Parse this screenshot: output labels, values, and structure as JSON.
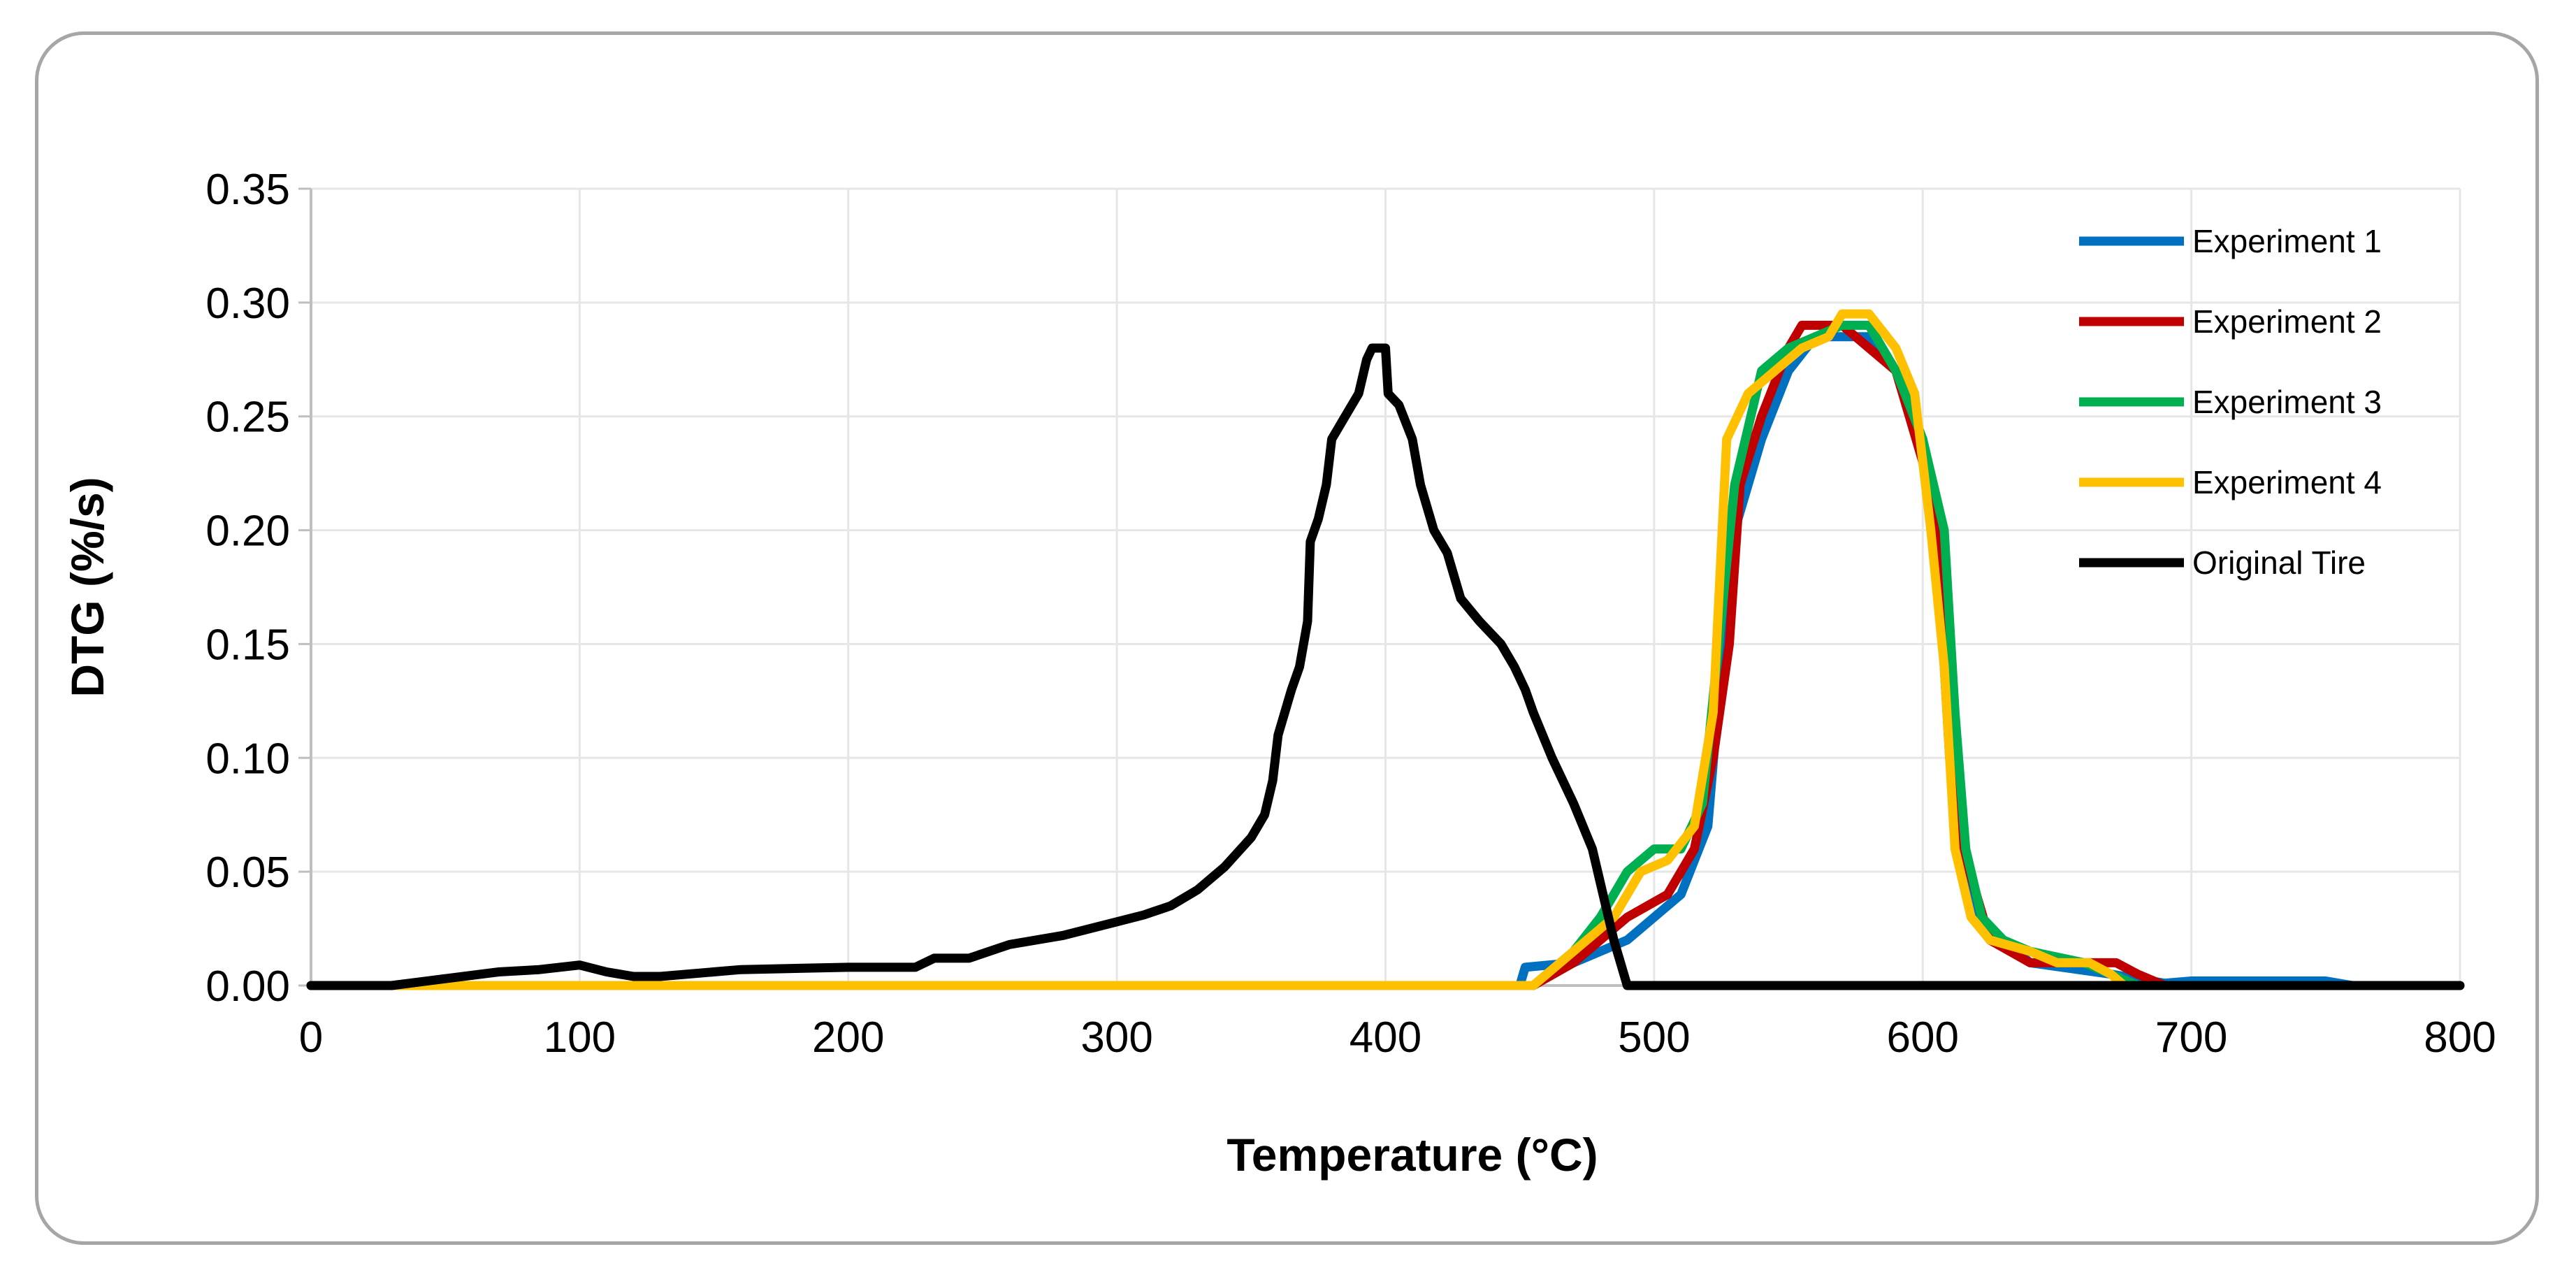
{
  "chart_data": {
    "type": "line",
    "title": "",
    "xlabel": "Temperature (°C)",
    "ylabel": "DTG (%/s)",
    "xlim": [
      0,
      800
    ],
    "ylim": [
      0,
      0.35
    ],
    "x_ticks": [
      0,
      100,
      200,
      300,
      400,
      500,
      600,
      700,
      800
    ],
    "y_ticks": [
      0,
      0.05,
      0.1,
      0.15,
      0.2,
      0.25,
      0.3,
      0.35
    ],
    "x_tick_labels": [
      "0",
      "100",
      "200",
      "300",
      "400",
      "500",
      "600",
      "700",
      "800"
    ],
    "y_tick_labels": [
      "0.00",
      "0.05",
      "0.10",
      "0.15",
      "0.20",
      "0.25",
      "0.30",
      "0.35"
    ],
    "grid": true,
    "legend_position": "top-right",
    "series": [
      {
        "name": "Experiment 1",
        "color": "#0070c0",
        "points": [
          [
            0,
            0
          ],
          [
            450,
            0
          ],
          [
            452,
            0.008
          ],
          [
            470,
            0.01
          ],
          [
            490,
            0.02
          ],
          [
            510,
            0.04
          ],
          [
            520,
            0.07
          ],
          [
            525,
            0.14
          ],
          [
            530,
            0.2
          ],
          [
            540,
            0.24
          ],
          [
            550,
            0.27
          ],
          [
            560,
            0.285
          ],
          [
            580,
            0.285
          ],
          [
            590,
            0.27
          ],
          [
            600,
            0.24
          ],
          [
            605,
            0.2
          ],
          [
            610,
            0.1
          ],
          [
            615,
            0.05
          ],
          [
            620,
            0.03
          ],
          [
            630,
            0.02
          ],
          [
            640,
            0.01
          ],
          [
            670,
            0.005
          ],
          [
            690,
            0.001
          ],
          [
            700,
            0.002
          ],
          [
            750,
            0.002
          ],
          [
            760,
            0
          ],
          [
            800,
            0
          ]
        ]
      },
      {
        "name": "Experiment 2",
        "color": "#c00000",
        "points": [
          [
            0,
            0
          ],
          [
            455,
            0
          ],
          [
            470,
            0.01
          ],
          [
            490,
            0.03
          ],
          [
            505,
            0.04
          ],
          [
            515,
            0.06
          ],
          [
            522,
            0.1
          ],
          [
            528,
            0.15
          ],
          [
            532,
            0.22
          ],
          [
            540,
            0.25
          ],
          [
            550,
            0.28
          ],
          [
            555,
            0.29
          ],
          [
            570,
            0.29
          ],
          [
            580,
            0.28
          ],
          [
            590,
            0.27
          ],
          [
            600,
            0.23
          ],
          [
            606,
            0.19
          ],
          [
            610,
            0.12
          ],
          [
            615,
            0.06
          ],
          [
            620,
            0.04
          ],
          [
            625,
            0.02
          ],
          [
            640,
            0.01
          ],
          [
            660,
            0.01
          ],
          [
            672,
            0.01
          ],
          [
            680,
            0.005
          ],
          [
            690,
            0
          ],
          [
            800,
            0
          ]
        ]
      },
      {
        "name": "Experiment 3",
        "color": "#00b050",
        "points": [
          [
            0,
            0
          ],
          [
            455,
            0
          ],
          [
            470,
            0.015
          ],
          [
            480,
            0.03
          ],
          [
            490,
            0.05
          ],
          [
            500,
            0.06
          ],
          [
            510,
            0.06
          ],
          [
            518,
            0.08
          ],
          [
            524,
            0.15
          ],
          [
            530,
            0.22
          ],
          [
            540,
            0.27
          ],
          [
            550,
            0.28
          ],
          [
            560,
            0.285
          ],
          [
            570,
            0.29
          ],
          [
            580,
            0.29
          ],
          [
            590,
            0.27
          ],
          [
            600,
            0.24
          ],
          [
            608,
            0.2
          ],
          [
            612,
            0.12
          ],
          [
            616,
            0.06
          ],
          [
            622,
            0.03
          ],
          [
            630,
            0.02
          ],
          [
            640,
            0.015
          ],
          [
            660,
            0.01
          ],
          [
            670,
            0.005
          ],
          [
            680,
            0
          ],
          [
            800,
            0
          ]
        ]
      },
      {
        "name": "Experiment 4",
        "color": "#ffc000",
        "points": [
          [
            0,
            0
          ],
          [
            455,
            0
          ],
          [
            470,
            0.015
          ],
          [
            485,
            0.03
          ],
          [
            495,
            0.05
          ],
          [
            505,
            0.055
          ],
          [
            515,
            0.07
          ],
          [
            522,
            0.12
          ],
          [
            527,
            0.24
          ],
          [
            535,
            0.26
          ],
          [
            545,
            0.27
          ],
          [
            555,
            0.28
          ],
          [
            565,
            0.285
          ],
          [
            570,
            0.295
          ],
          [
            580,
            0.295
          ],
          [
            590,
            0.28
          ],
          [
            597,
            0.26
          ],
          [
            603,
            0.2
          ],
          [
            608,
            0.14
          ],
          [
            612,
            0.06
          ],
          [
            618,
            0.03
          ],
          [
            625,
            0.02
          ],
          [
            640,
            0.015
          ],
          [
            650,
            0.01
          ],
          [
            662,
            0.01
          ],
          [
            670,
            0.005
          ],
          [
            675,
            0
          ],
          [
            800,
            0
          ]
        ]
      },
      {
        "name": "Original Tire",
        "color": "#000000",
        "points": [
          [
            0,
            0
          ],
          [
            30,
            0
          ],
          [
            50,
            0.003
          ],
          [
            70,
            0.006
          ],
          [
            85,
            0.007
          ],
          [
            100,
            0.009
          ],
          [
            110,
            0.006
          ],
          [
            120,
            0.004
          ],
          [
            130,
            0.004
          ],
          [
            160,
            0.007
          ],
          [
            200,
            0.008
          ],
          [
            225,
            0.008
          ],
          [
            232,
            0.012
          ],
          [
            245,
            0.012
          ],
          [
            260,
            0.018
          ],
          [
            280,
            0.022
          ],
          [
            300,
            0.028
          ],
          [
            310,
            0.031
          ],
          [
            320,
            0.035
          ],
          [
            330,
            0.042
          ],
          [
            340,
            0.052
          ],
          [
            350,
            0.065
          ],
          [
            355,
            0.075
          ],
          [
            358,
            0.09
          ],
          [
            360,
            0.11
          ],
          [
            365,
            0.13
          ],
          [
            368,
            0.14
          ],
          [
            371,
            0.16
          ],
          [
            372,
            0.195
          ],
          [
            375,
            0.205
          ],
          [
            378,
            0.22
          ],
          [
            380,
            0.24
          ],
          [
            385,
            0.25
          ],
          [
            390,
            0.26
          ],
          [
            393,
            0.275
          ],
          [
            395,
            0.28
          ],
          [
            400,
            0.28
          ],
          [
            401,
            0.26
          ],
          [
            405,
            0.255
          ],
          [
            410,
            0.24
          ],
          [
            413,
            0.22
          ],
          [
            418,
            0.2
          ],
          [
            423,
            0.19
          ],
          [
            428,
            0.17
          ],
          [
            435,
            0.16
          ],
          [
            443,
            0.15
          ],
          [
            448,
            0.14
          ],
          [
            452,
            0.13
          ],
          [
            455,
            0.12
          ],
          [
            462,
            0.1
          ],
          [
            470,
            0.08
          ],
          [
            477,
            0.06
          ],
          [
            481,
            0.04
          ],
          [
            485,
            0.02
          ],
          [
            490,
            0
          ],
          [
            800,
            0
          ]
        ]
      }
    ]
  }
}
